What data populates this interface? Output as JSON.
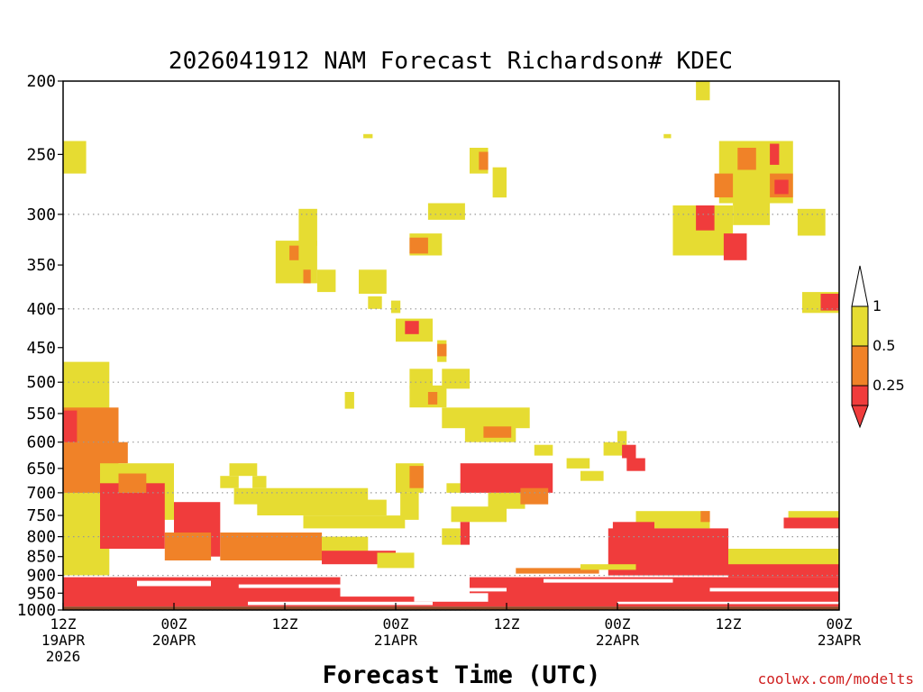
{
  "chart_data": {
    "type": "heatmap",
    "title": "2026041912 NAM Forecast Richardson# KDEC",
    "xlabel": "Forecast Time (UTC)",
    "ylabel": "",
    "credit": "coolwx.com/modelts",
    "x_unit": "forecast hour from 2026-04-19 12Z",
    "xlim": [
      0,
      84
    ],
    "ylim": [
      1000,
      200
    ],
    "y_scale": "log pressure (hPa)",
    "y_ticks": [
      200,
      250,
      300,
      350,
      400,
      450,
      500,
      550,
      600,
      650,
      700,
      750,
      800,
      850,
      900,
      950,
      1000
    ],
    "y_gridlines": [
      300,
      400,
      500,
      600,
      700,
      800,
      900,
      1000
    ],
    "x_ticks": [
      {
        "hour": 0,
        "line1": "12Z",
        "line2": "19APR",
        "line3": "2026"
      },
      {
        "hour": 12,
        "line1": "00Z",
        "line2": "20APR",
        "line3": ""
      },
      {
        "hour": 24,
        "line1": "12Z",
        "line2": "",
        "line3": ""
      },
      {
        "hour": 36,
        "line1": "00Z",
        "line2": "21APR",
        "line3": ""
      },
      {
        "hour": 48,
        "line1": "12Z",
        "line2": "",
        "line3": ""
      },
      {
        "hour": 60,
        "line1": "00Z",
        "line2": "22APR",
        "line3": ""
      },
      {
        "hour": 72,
        "line1": "12Z",
        "line2": "",
        "line3": ""
      },
      {
        "hour": 84,
        "line1": "00Z",
        "line2": "23APR",
        "line3": ""
      }
    ],
    "legend": {
      "placement": "right",
      "thresholds": [
        "1",
        "0.5",
        "0.25"
      ],
      "classes": [
        {
          "label": "> 1",
          "color": "#ffffff"
        },
        {
          "label": "0.5 - 1",
          "color": "#e6dc32"
        },
        {
          "label": "0.25 - 0.5",
          "color": "#f08228"
        },
        {
          "label": "< 0.25",
          "color": "#f03c3c"
        }
      ]
    },
    "surface": {
      "color": "#8b4a28",
      "pressure_top": 990
    },
    "regions": [
      {
        "cls": 1,
        "x": [
          0,
          2.5
        ],
        "p": [
          240,
          265
        ]
      },
      {
        "cls": 1,
        "x": [
          32.5,
          33.5
        ],
        "p": [
          235,
          238
        ]
      },
      {
        "cls": 1,
        "x": [
          44,
          46
        ],
        "p": [
          245,
          265
        ]
      },
      {
        "cls": 2,
        "x": [
          45,
          46
        ],
        "p": [
          248,
          262
        ]
      },
      {
        "cls": 1,
        "x": [
          46.5,
          48
        ],
        "p": [
          260,
          285
        ]
      },
      {
        "cls": 1,
        "x": [
          65,
          65.8
        ],
        "p": [
          235,
          238
        ]
      },
      {
        "cls": 1,
        "x": [
          68.5,
          70
        ],
        "p": [
          200,
          212
        ]
      },
      {
        "cls": 1,
        "x": [
          71,
          76.5
        ],
        "p": [
          240,
          290
        ]
      },
      {
        "cls": 2,
        "x": [
          73,
          75
        ],
        "p": [
          245,
          262
        ]
      },
      {
        "cls": 2,
        "x": [
          70.5,
          72.5
        ],
        "p": [
          265,
          285
        ]
      },
      {
        "cls": 1,
        "x": [
          75.5,
          79
        ],
        "p": [
          240,
          290
        ]
      },
      {
        "cls": 3,
        "x": [
          76.5,
          77.5
        ],
        "p": [
          242,
          258
        ]
      },
      {
        "cls": 2,
        "x": [
          76.5,
          79
        ],
        "p": [
          265,
          285
        ]
      },
      {
        "cls": 3,
        "x": [
          77,
          78.5
        ],
        "p": [
          270,
          282
        ]
      },
      {
        "cls": 1,
        "x": [
          66,
          72.5
        ],
        "p": [
          292,
          340
        ]
      },
      {
        "cls": 3,
        "x": [
          68.5,
          70.5
        ],
        "p": [
          292,
          315
        ]
      },
      {
        "cls": 1,
        "x": [
          72.5,
          76.5
        ],
        "p": [
          290,
          310
        ]
      },
      {
        "cls": 3,
        "x": [
          71.5,
          74
        ],
        "p": [
          318,
          345
        ]
      },
      {
        "cls": 1,
        "x": [
          79.5,
          82.5
        ],
        "p": [
          295,
          320
        ]
      },
      {
        "cls": 1,
        "x": [
          80,
          84
        ],
        "p": [
          380,
          405
        ]
      },
      {
        "cls": 3,
        "x": [
          82,
          84
        ],
        "p": [
          382,
          402
        ]
      },
      {
        "cls": 1,
        "x": [
          39.5,
          43.5
        ],
        "p": [
          290,
          305
        ]
      },
      {
        "cls": 1,
        "x": [
          37.5,
          41
        ],
        "p": [
          318,
          340
        ]
      },
      {
        "cls": 2,
        "x": [
          37.5,
          39.5
        ],
        "p": [
          322,
          338
        ]
      },
      {
        "cls": 1,
        "x": [
          25.5,
          27.5
        ],
        "p": [
          295,
          330
        ]
      },
      {
        "cls": 1,
        "x": [
          23,
          27.5
        ],
        "p": [
          325,
          370
        ]
      },
      {
        "cls": 2,
        "x": [
          24.5,
          25.5
        ],
        "p": [
          330,
          345
        ]
      },
      {
        "cls": 2,
        "x": [
          26,
          26.8
        ],
        "p": [
          355,
          370
        ]
      },
      {
        "cls": 1,
        "x": [
          27.5,
          29.5
        ],
        "p": [
          355,
          380
        ]
      },
      {
        "cls": 1,
        "x": [
          32,
          35
        ],
        "p": [
          355,
          382
        ]
      },
      {
        "cls": 1,
        "x": [
          33,
          34.5
        ],
        "p": [
          385,
          400
        ]
      },
      {
        "cls": 1,
        "x": [
          35.5,
          36.5
        ],
        "p": [
          390,
          405
        ]
      },
      {
        "cls": 1,
        "x": [
          36,
          40
        ],
        "p": [
          412,
          442
        ]
      },
      {
        "cls": 3,
        "x": [
          37,
          38.5
        ],
        "p": [
          415,
          432
        ]
      },
      {
        "cls": 1,
        "x": [
          40.5,
          41.5
        ],
        "p": [
          440,
          470
        ]
      },
      {
        "cls": 2,
        "x": [
          40.5,
          41.5
        ],
        "p": [
          445,
          462
        ]
      },
      {
        "cls": 1,
        "x": [
          37.5,
          40
        ],
        "p": [
          480,
          510
        ]
      },
      {
        "cls": 1,
        "x": [
          41,
          44
        ],
        "p": [
          480,
          510
        ]
      },
      {
        "cls": 1,
        "x": [
          37.5,
          41.5
        ],
        "p": [
          505,
          540
        ]
      },
      {
        "cls": 2,
        "x": [
          39.5,
          40.5
        ],
        "p": [
          515,
          535
        ]
      },
      {
        "cls": 1,
        "x": [
          30.5,
          31.5
        ],
        "p": [
          515,
          542
        ]
      },
      {
        "cls": 1,
        "x": [
          41,
          50.5
        ],
        "p": [
          540,
          575
        ]
      },
      {
        "cls": 1,
        "x": [
          43.5,
          49
        ],
        "p": [
          570,
          600
        ]
      },
      {
        "cls": 2,
        "x": [
          45.5,
          48.5
        ],
        "p": [
          572,
          592
        ]
      },
      {
        "cls": 1,
        "x": [
          51,
          53
        ],
        "p": [
          605,
          625
        ]
      },
      {
        "cls": 1,
        "x": [
          58.5,
          61
        ],
        "p": [
          600,
          625
        ]
      },
      {
        "cls": 3,
        "x": [
          60.5,
          62
        ],
        "p": [
          605,
          630
        ]
      },
      {
        "cls": 1,
        "x": [
          60,
          61
        ],
        "p": [
          580,
          600
        ]
      },
      {
        "cls": 3,
        "x": [
          61,
          63
        ],
        "p": [
          630,
          655
        ]
      },
      {
        "cls": 1,
        "x": [
          54.5,
          57
        ],
        "p": [
          630,
          650
        ]
      },
      {
        "cls": 1,
        "x": [
          56,
          58.5
        ],
        "p": [
          655,
          675
        ]
      },
      {
        "cls": 1,
        "x": [
          18,
          21
        ],
        "p": [
          640,
          665
        ]
      },
      {
        "cls": 1,
        "x": [
          17,
          19
        ],
        "p": [
          665,
          690
        ]
      },
      {
        "cls": 1,
        "x": [
          20.5,
          22
        ],
        "p": [
          665,
          690
        ]
      },
      {
        "cls": 1,
        "x": [
          18.5,
          33
        ],
        "p": [
          690,
          725
        ]
      },
      {
        "cls": 1,
        "x": [
          21,
          35
        ],
        "p": [
          715,
          750
        ]
      },
      {
        "cls": 1,
        "x": [
          26,
          37
        ],
        "p": [
          750,
          780
        ]
      },
      {
        "cls": 1,
        "x": [
          36,
          39
        ],
        "p": [
          640,
          700
        ]
      },
      {
        "cls": 2,
        "x": [
          37.5,
          39
        ],
        "p": [
          645,
          690
        ]
      },
      {
        "cls": 1,
        "x": [
          36.5,
          38.5
        ],
        "p": [
          700,
          760
        ]
      },
      {
        "cls": 1,
        "x": [
          41.5,
          43
        ],
        "p": [
          680,
          700
        ]
      },
      {
        "cls": 3,
        "x": [
          43,
          53
        ],
        "p": [
          640,
          700
        ]
      },
      {
        "cls": 1,
        "x": [
          46,
          50
        ],
        "p": [
          700,
          735
        ]
      },
      {
        "cls": 2,
        "x": [
          49.5,
          52.5
        ],
        "p": [
          690,
          725
        ]
      },
      {
        "cls": 1,
        "x": [
          42,
          48
        ],
        "p": [
          730,
          765
        ]
      },
      {
        "cls": 3,
        "x": [
          43,
          44
        ],
        "p": [
          765,
          820
        ]
      },
      {
        "cls": 1,
        "x": [
          41,
          43
        ],
        "p": [
          780,
          820
        ]
      },
      {
        "cls": 1,
        "x": [
          62,
          70
        ],
        "p": [
          740,
          780
        ]
      },
      {
        "cls": 3,
        "x": [
          59.5,
          64
        ],
        "p": [
          765,
          790
        ]
      },
      {
        "cls": 2,
        "x": [
          69,
          70
        ],
        "p": [
          740,
          765
        ]
      },
      {
        "cls": 1,
        "x": [
          78.5,
          84
        ],
        "p": [
          740,
          760
        ]
      },
      {
        "cls": 3,
        "x": [
          78,
          84
        ],
        "p": [
          755,
          780
        ]
      },
      {
        "cls": 1,
        "x": [
          0,
          5
        ],
        "p": [
          470,
          900
        ]
      },
      {
        "cls": 2,
        "x": [
          0,
          6
        ],
        "p": [
          540,
          700
        ]
      },
      {
        "cls": 3,
        "x": [
          0,
          1.5
        ],
        "p": [
          545,
          600
        ]
      },
      {
        "cls": 2,
        "x": [
          5,
          7
        ],
        "p": [
          600,
          640
        ]
      },
      {
        "cls": 1,
        "x": [
          4,
          12
        ],
        "p": [
          640,
          760
        ]
      },
      {
        "cls": 3,
        "x": [
          4,
          11
        ],
        "p": [
          680,
          830
        ]
      },
      {
        "cls": 2,
        "x": [
          6,
          9
        ],
        "p": [
          660,
          700
        ]
      },
      {
        "cls": 3,
        "x": [
          12,
          17
        ],
        "p": [
          720,
          850
        ]
      },
      {
        "cls": 2,
        "x": [
          11,
          16
        ],
        "p": [
          790,
          860
        ]
      },
      {
        "cls": 2,
        "x": [
          17,
          28
        ],
        "p": [
          790,
          860
        ]
      },
      {
        "cls": 1,
        "x": [
          28,
          33
        ],
        "p": [
          800,
          860
        ]
      },
      {
        "cls": 3,
        "x": [
          28,
          36
        ],
        "p": [
          835,
          870
        ]
      },
      {
        "cls": 1,
        "x": [
          34,
          38
        ],
        "p": [
          840,
          880
        ]
      },
      {
        "cls": 3,
        "x": [
          59,
          72
        ],
        "p": [
          780,
          900
        ]
      },
      {
        "cls": 1,
        "x": [
          72,
          84
        ],
        "p": [
          830,
          880
        ]
      },
      {
        "cls": 3,
        "x": [
          72,
          84
        ],
        "p": [
          870,
          905
        ]
      },
      {
        "cls": 3,
        "x": [
          0,
          84
        ],
        "p": [
          905,
          990
        ]
      },
      {
        "cls": 0,
        "x": [
          8,
          16
        ],
        "p": [
          915,
          930
        ]
      },
      {
        "cls": 0,
        "x": [
          19,
          30
        ],
        "p": [
          925,
          935
        ]
      },
      {
        "cls": 0,
        "x": [
          30,
          44
        ],
        "p": [
          900,
          960
        ]
      },
      {
        "cls": 0,
        "x": [
          38,
          46
        ],
        "p": [
          950,
          975
        ]
      },
      {
        "cls": 0,
        "x": [
          20,
          40
        ],
        "p": [
          975,
          985
        ]
      },
      {
        "cls": 0,
        "x": [
          44,
          48
        ],
        "p": [
          935,
          945
        ]
      },
      {
        "cls": 0,
        "x": [
          52,
          66
        ],
        "p": [
          910,
          920
        ]
      },
      {
        "cls": 0,
        "x": [
          70,
          84
        ],
        "p": [
          935,
          945
        ]
      },
      {
        "cls": 0,
        "x": [
          60,
          84
        ],
        "p": [
          975,
          982
        ]
      },
      {
        "cls": 2,
        "x": [
          49,
          58
        ],
        "p": [
          880,
          895
        ]
      },
      {
        "cls": 1,
        "x": [
          56,
          62
        ],
        "p": [
          870,
          885
        ]
      }
    ]
  }
}
